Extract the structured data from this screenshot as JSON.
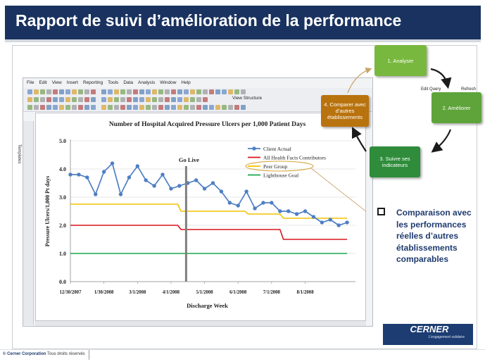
{
  "header": {
    "title": "Rapport de suivi d’amélioration de la performance"
  },
  "app": {
    "menu_items": [
      "File",
      "Edit",
      "View",
      "Insert",
      "Reporting",
      "Tools",
      "Data",
      "Analysis",
      "Window",
      "Help"
    ],
    "view_structure_label": "View Structure",
    "edit_query_label": "Edit Query",
    "refresh_label": "Refresh",
    "side_tab_label": "Templates"
  },
  "colors": {
    "header_bg": "#19325f",
    "client_actual": "#4e7fc4",
    "all_hf": "#d8151b",
    "peer_group": "#f2c200",
    "lighthouse": "#1aa64a",
    "go_live": "#7f7f7f"
  },
  "chart_data": {
    "type": "line",
    "title": "Number of Hospital Acquired Pressure Ulcers per 1,000 Patient Days",
    "xlabel": "Discharge Week",
    "ylabel": "Pressure Ulcers/1,000 Pt days",
    "ylim": [
      0,
      5
    ],
    "yticks": [
      "0.0",
      "1.0",
      "2.0",
      "3.0",
      "4.0",
      "5.0"
    ],
    "xtick_labels": [
      "12/30/2007",
      "1/30/2008",
      "3/1/2008",
      "4/1/2008",
      "5/1/2008",
      "6/1/2008",
      "7/1/2008",
      "8/1/2008"
    ],
    "xlim": [
      0,
      34
    ],
    "xtick_positions": [
      0,
      4,
      8,
      12,
      16,
      20,
      24,
      28
    ],
    "go_live_label": "Go  Live",
    "go_live_x": 13.8,
    "legend_position": "top-right",
    "series": [
      {
        "name": "Client Actual",
        "color": "#4e7fc4",
        "x": [
          0,
          1,
          2,
          3,
          4,
          5,
          6,
          7,
          8,
          9,
          10,
          11,
          12,
          13,
          14,
          15,
          16,
          17,
          18,
          19,
          20,
          21,
          22,
          23,
          24,
          25,
          26,
          27,
          28,
          29,
          30,
          31,
          32,
          33
        ],
        "values": [
          3.8,
          3.8,
          3.7,
          3.1,
          3.9,
          4.2,
          3.1,
          3.7,
          4.1,
          3.6,
          3.4,
          3.8,
          3.3,
          3.4,
          3.5,
          3.6,
          3.3,
          3.5,
          3.2,
          2.8,
          2.7,
          3.2,
          2.6,
          2.8,
          2.8,
          2.5,
          2.5,
          2.4,
          2.5,
          2.3,
          2.1,
          2.2,
          2.0,
          2.1
        ]
      },
      {
        "name": "All Health Facts Contributors",
        "color": "#d8151b",
        "x": [
          0,
          12.8,
          13.2,
          25,
          25.4,
          33
        ],
        "values": [
          2.0,
          2.0,
          1.85,
          1.85,
          1.5,
          1.5
        ]
      },
      {
        "name": "Peer Group",
        "color": "#f2c200",
        "x": [
          0,
          12.8,
          13.2,
          20.8,
          21.2,
          25,
          25.4,
          33
        ],
        "values": [
          2.75,
          2.75,
          2.5,
          2.5,
          2.4,
          2.4,
          2.25,
          2.25
        ]
      },
      {
        "name": "Lighthouse Goal",
        "color": "#1aa64a",
        "x": [
          0,
          33
        ],
        "values": [
          1.0,
          1.0
        ]
      }
    ]
  },
  "cycle": {
    "step1": "1. Analyser",
    "step2": "2. Améliorer",
    "step3": "3. Suivre ses indicateurs",
    "step4": "4. Comparer avec d’autres établissements"
  },
  "annotation": {
    "text": "Comparaison avec les performances réelles d’autres établissements comparables"
  },
  "cerner": {
    "name": "CERNER",
    "tagline": "L’engagement solidaire"
  },
  "footer": {
    "copyright_bold": "© Cerner Corporation",
    "copyright_rest": " Tous droits réservés"
  }
}
